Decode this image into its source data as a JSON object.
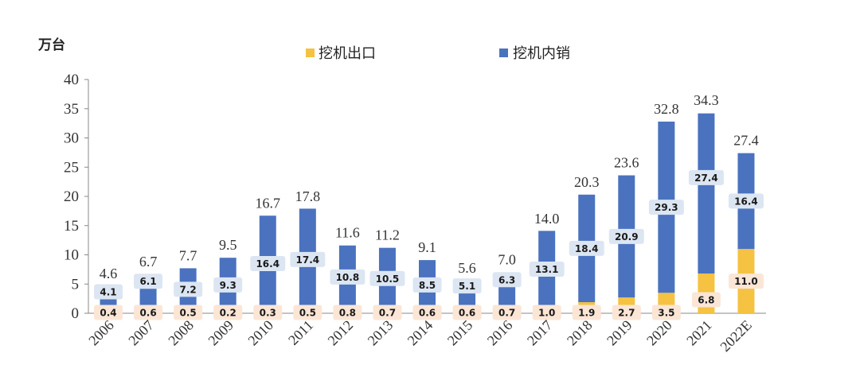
{
  "chart_data": {
    "type": "bar",
    "stacked": true,
    "unit_label": "万台",
    "categories": [
      "2006",
      "2007",
      "2008",
      "2009",
      "2010",
      "2011",
      "2012",
      "2013",
      "2014",
      "2015",
      "2016",
      "2017",
      "2018",
      "2019",
      "2020",
      "2021",
      "2022E"
    ],
    "series": [
      {
        "name": "挖机出口",
        "color": "#F5C242",
        "label_bg": "#FBE6D6",
        "values": [
          0.4,
          0.6,
          0.5,
          0.2,
          0.3,
          0.5,
          0.8,
          0.7,
          0.6,
          0.6,
          0.7,
          1.0,
          1.9,
          2.7,
          3.5,
          6.8,
          11.0
        ],
        "labels": [
          "0.4",
          "0.6",
          "0.5",
          "0.2",
          "0.3",
          "0.5",
          "0.8",
          "0.7",
          "0.6",
          "0.6",
          "0.7",
          "1.0",
          "1.9",
          "2.7",
          "3.5",
          "6.8",
          "11.0"
        ]
      },
      {
        "name": "挖机内销",
        "color": "#4A72BF",
        "label_bg": "#DCE6F2",
        "values": [
          4.1,
          6.1,
          7.2,
          9.3,
          16.4,
          17.4,
          10.8,
          10.5,
          8.5,
          5.1,
          6.3,
          13.1,
          18.4,
          20.9,
          29.3,
          27.4,
          16.4
        ],
        "labels": [
          "4.1",
          "6.1",
          "7.2",
          "9.3",
          "16.4",
          "17.4",
          "10.8",
          "10.5",
          "8.5",
          "5.1",
          "6.3",
          "13.1",
          "18.4",
          "20.9",
          "29.3",
          "27.4",
          "16.4"
        ]
      }
    ],
    "totals": [
      4.6,
      6.7,
      7.7,
      9.5,
      16.7,
      17.8,
      11.6,
      11.2,
      9.1,
      5.6,
      7.0,
      14.0,
      20.3,
      23.6,
      32.8,
      34.3,
      27.4
    ],
    "total_labels": [
      "4.6",
      "6.7",
      "7.7",
      "9.5",
      "16.7",
      "17.8",
      "11.6",
      "11.2",
      "9.1",
      "5.6",
      "7.0",
      "14.0",
      "20.3",
      "23.6",
      "32.8",
      "34.3",
      "27.4"
    ],
    "ylim": [
      0,
      40
    ],
    "yticks": [
      "0",
      "5",
      "10",
      "15",
      "20",
      "25",
      "30",
      "35",
      "40"
    ],
    "grid": false,
    "legend_position": "top-center"
  }
}
